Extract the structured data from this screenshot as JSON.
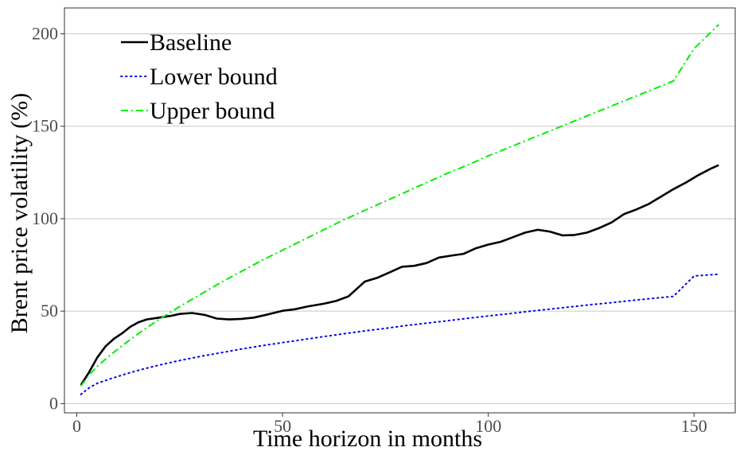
{
  "chart_data": {
    "type": "line",
    "title": "",
    "xlabel": "Time horizon in months",
    "ylabel": "Brent price volatility (%)",
    "xlim": [
      -3,
      160
    ],
    "ylim": [
      -5,
      214
    ],
    "x_ticks": [
      0,
      50,
      100,
      150
    ],
    "y_ticks": [
      0,
      50,
      100,
      150,
      200
    ],
    "grid": "horizontal major",
    "legend_position": "top-left",
    "series": [
      {
        "name": "Baseline",
        "color": "#000000",
        "style": "solid",
        "x": [
          1,
          3,
          5,
          7,
          9,
          11,
          13,
          15,
          17,
          20,
          23,
          25,
          28,
          31,
          34,
          37,
          40,
          43,
          46,
          50,
          53,
          56,
          60,
          63,
          66,
          68,
          70,
          73,
          76,
          79,
          82,
          85,
          88,
          91,
          94,
          97,
          100,
          103,
          106,
          109,
          112,
          115,
          118,
          121,
          124,
          127,
          130,
          133,
          136,
          139,
          142,
          145,
          148,
          151,
          154,
          156
        ],
        "y": [
          10,
          17,
          25,
          31,
          35,
          38,
          41.5,
          44,
          45.5,
          46.5,
          47.5,
          48.5,
          49,
          48,
          46,
          45.5,
          45.8,
          46.5,
          48,
          50.2,
          51,
          52.5,
          54,
          55.5,
          58,
          62,
          66,
          68,
          71,
          74,
          74.5,
          76,
          79,
          80,
          81,
          84,
          86,
          87.5,
          90,
          92.5,
          94,
          93,
          91,
          91.2,
          92.5,
          95,
          98,
          102.5,
          105,
          108,
          112,
          116,
          119.5,
          123.5,
          127,
          129
        ]
      },
      {
        "name": "Lower bound",
        "color": "#0000ee",
        "style": "dotted",
        "x": [
          1,
          3,
          5,
          8,
          12,
          16,
          20,
          25,
          30,
          35,
          40,
          45,
          50,
          55,
          60,
          65,
          70,
          75,
          80,
          85,
          90,
          95,
          100,
          105,
          110,
          115,
          120,
          125,
          130,
          135,
          140,
          145,
          150,
          156
        ],
        "y": [
          5,
          8.5,
          11,
          13.3,
          16.1,
          18.6,
          20.8,
          23.3,
          25.5,
          27.5,
          29.5,
          31.3,
          33,
          34.6,
          36.2,
          37.8,
          39.3,
          40.7,
          42.2,
          43.5,
          44.8,
          46.1,
          47.4,
          48.6,
          49.9,
          51.1,
          52.3,
          53.5,
          54.6,
          55.8,
          56.9,
          58,
          69,
          70
        ]
      },
      {
        "name": "Upper bound",
        "color": "#00ee00",
        "style": "dashdot",
        "x": [
          1,
          3,
          5,
          8,
          12,
          16,
          20,
          25,
          30,
          35,
          40,
          45,
          50,
          55,
          60,
          65,
          70,
          75,
          80,
          85,
          90,
          95,
          100,
          105,
          110,
          115,
          120,
          125,
          130,
          135,
          140,
          145,
          150,
          156
        ],
        "y": [
          9.5,
          15.5,
          20.2,
          26,
          33,
          39.5,
          45.5,
          52.5,
          59,
          65.5,
          71.5,
          77.5,
          83,
          88.5,
          94,
          99.5,
          104.5,
          109.5,
          114.5,
          119.5,
          124.5,
          129,
          134,
          138.5,
          143,
          147.5,
          152,
          156.5,
          161,
          165.5,
          170,
          174.5,
          192,
          205
        ]
      }
    ]
  }
}
